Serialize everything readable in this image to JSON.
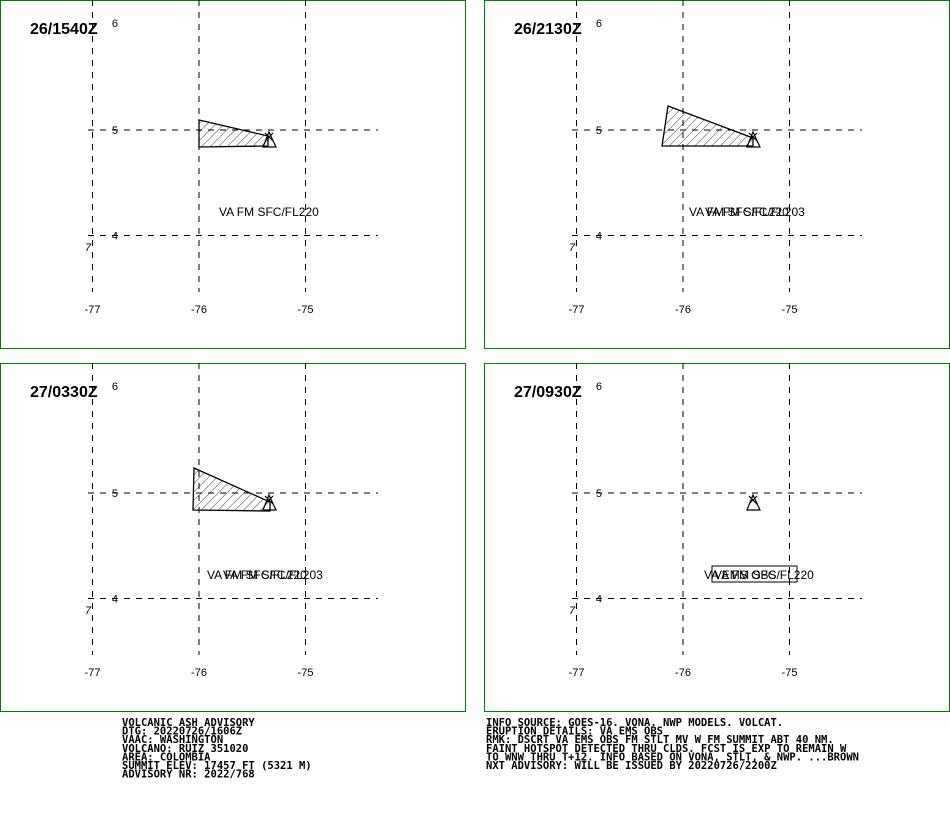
{
  "panels": [
    {
      "time": "26/1540Z",
      "labels": [
        "VA FM SFC/FL220"
      ]
    },
    {
      "time": "26/2130Z",
      "labels": [
        "VA FM SFC/FL220",
        "VA FM SFC/FL203"
      ]
    },
    {
      "time": "27/0330Z",
      "labels": [
        "VA FM SFC/FL220",
        "VA FM SFC/FL203"
      ]
    },
    {
      "time": "27/0930Z",
      "labels": [
        "VA EMS OBS",
        "VA FM SFC/FL220"
      ]
    }
  ],
  "lat_ticks": [
    6,
    5,
    4
  ],
  "lon_ticks": [
    -77,
    -76,
    -75
  ],
  "marker": "7",
  "advisory_left": [
    "VOLCANIC ASH ADVISORY",
    "DTG: 20220726/1606Z",
    "VAAC: WASHINGTON",
    "VOLCANO: RUIZ 351020",
    "AREA: COLOMBIA",
    "SUMMIT ELEV: 17457 FT (5321 M)",
    "ADVISORY NR: 2022/768"
  ],
  "advisory_right": [
    "INFO SOURCE: GOES-16. VONA. NWP MODELS. VOLCAT.",
    "ERUPTION DETAILS: VA EMS OBS",
    "RMK: DSCRT VA EMS OBS FM STLT MV W FM SUMMIT ABT 40 NM.",
    "FAINT HOTSPOT DETECTED THRU CLDS. FCST IS EXP TO REMAIN W",
    "TO WNW THRU T+12. INFO BASED ON VONA, STLT, & NWP. ...BROWN",
    "NXT ADVISORY: WILL BE ISSUED BY 20220726/2200Z"
  ]
}
